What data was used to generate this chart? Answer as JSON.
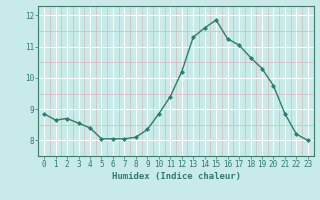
{
  "x": [
    0,
    1,
    2,
    3,
    4,
    5,
    6,
    7,
    8,
    9,
    10,
    11,
    12,
    13,
    14,
    15,
    16,
    17,
    18,
    19,
    20,
    21,
    22,
    23
  ],
  "y": [
    8.85,
    8.65,
    8.7,
    8.55,
    8.4,
    8.05,
    8.05,
    8.05,
    8.1,
    8.35,
    8.85,
    9.4,
    10.2,
    11.3,
    11.6,
    11.85,
    11.25,
    11.05,
    10.65,
    10.3,
    9.75,
    8.85,
    8.2,
    8.0
  ],
  "xlabel": "Humidex (Indice chaleur)",
  "ylim": [
    7.5,
    12.3
  ],
  "yticks": [
    8,
    9,
    10,
    11,
    12
  ],
  "xticks": [
    0,
    1,
    2,
    3,
    4,
    5,
    6,
    7,
    8,
    9,
    10,
    11,
    12,
    13,
    14,
    15,
    16,
    17,
    18,
    19,
    20,
    21,
    22,
    23
  ],
  "line_color": "#2e7d6e",
  "marker": "D",
  "marker_size": 2.0,
  "bg_color": "#c8eae8",
  "grid_major_color": "#ffffff",
  "grid_minor_color": "#d4b8b8",
  "spine_color": "#3d7a70",
  "tick_color": "#2e7d6e",
  "label_color": "#2e7d6e"
}
